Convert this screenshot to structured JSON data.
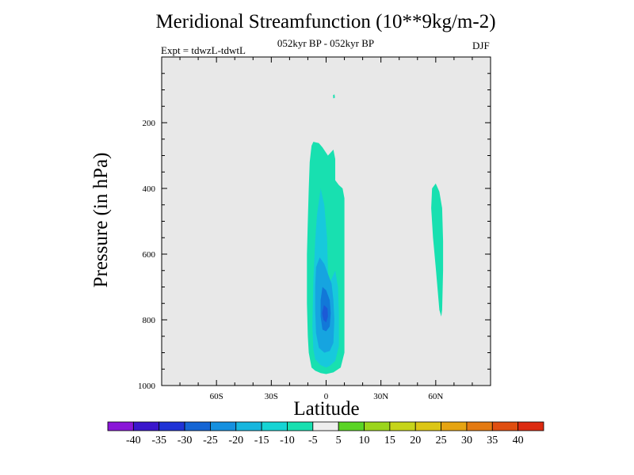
{
  "chart_data": {
    "type": "contour",
    "title": "Meridional Streamfunction (10**9kg/m-2)",
    "subtitle": "052kyr BP - 052kyr BP",
    "left_label": "Expt = tdwzL-tdwtL",
    "right_label": "DJF",
    "xlabel": "Latitude",
    "ylabel": "Pressure (in hPa)",
    "xlim": [
      -90,
      90
    ],
    "ylim": [
      1000,
      0
    ],
    "x_ticks": [
      {
        "value": -60,
        "label": "60S"
      },
      {
        "value": -30,
        "label": "30S"
      },
      {
        "value": 0,
        "label": "0"
      },
      {
        "value": 30,
        "label": "30N"
      },
      {
        "value": 60,
        "label": "60N"
      }
    ],
    "y_ticks": [
      {
        "value": 200,
        "label": "200"
      },
      {
        "value": 400,
        "label": "400"
      },
      {
        "value": 600,
        "label": "600"
      },
      {
        "value": 800,
        "label": "800"
      },
      {
        "value": 1000,
        "label": "1000"
      }
    ],
    "colorbar": {
      "levels": [
        -40,
        -35,
        -30,
        -25,
        -20,
        -15,
        -10,
        -5,
        5,
        10,
        15,
        20,
        25,
        30,
        35,
        40
      ],
      "colors": [
        "#8a16d8",
        "#3a16cc",
        "#2033d6",
        "#1565d4",
        "#1590df",
        "#17b6de",
        "#16d4d4",
        "#18e0b0",
        "#eeeeee",
        "#5ad425",
        "#9bd51b",
        "#c6d41a",
        "#dcc615",
        "#e6a412",
        "#e47a12",
        "#e04e10",
        "#dc2a10"
      ]
    },
    "regions": [
      {
        "name": "southern-cell-outer",
        "value_class": "-10 to -5",
        "color": "#18e0b0",
        "polygon": [
          [
            -7,
            258
          ],
          [
            -4,
            262
          ],
          [
            -2,
            275
          ],
          [
            1,
            300
          ],
          [
            3,
            288
          ],
          [
            4,
            282
          ],
          [
            5,
            310
          ],
          [
            5,
            375
          ],
          [
            7,
            390
          ],
          [
            9,
            400
          ],
          [
            10,
            430
          ],
          [
            10,
            530
          ],
          [
            10,
            900
          ],
          [
            8,
            945
          ],
          [
            4,
            960
          ],
          [
            0,
            965
          ],
          [
            -3,
            962
          ],
          [
            -6,
            955
          ],
          [
            -8,
            945
          ],
          [
            -9.5,
            900
          ],
          [
            -10,
            850
          ],
          [
            -10.5,
            750
          ],
          [
            -10.5,
            600
          ],
          [
            -10,
            500
          ],
          [
            -9.5,
            400
          ],
          [
            -9,
            320
          ],
          [
            -8,
            270
          ]
        ]
      },
      {
        "name": "southern-cell-mid",
        "value_class": "-15 to -10",
        "color": "#17c9dc",
        "polygon": [
          [
            -3,
            400
          ],
          [
            -1,
            450
          ],
          [
            0.5,
            550
          ],
          [
            1,
            650
          ],
          [
            1,
            700
          ],
          [
            5,
            650
          ],
          [
            6.5,
            700
          ],
          [
            7,
            780
          ],
          [
            7,
            880
          ],
          [
            5,
            925
          ],
          [
            2,
            940
          ],
          [
            0,
            945
          ],
          [
            -3,
            938
          ],
          [
            -6,
            920
          ],
          [
            -7,
            890
          ],
          [
            -7.5,
            820
          ],
          [
            -7,
            680
          ],
          [
            -6,
            560
          ],
          [
            -5,
            480
          ]
        ]
      },
      {
        "name": "southern-cell-inner",
        "value_class": "-20 to -15",
        "color": "#16a4e0",
        "polygon": [
          [
            -3.5,
            610
          ],
          [
            -1,
            630
          ],
          [
            1,
            660
          ],
          [
            3,
            690
          ],
          [
            4,
            740
          ],
          [
            4.5,
            800
          ],
          [
            4,
            870
          ],
          [
            2,
            895
          ],
          [
            -1,
            900
          ],
          [
            -4,
            885
          ],
          [
            -5.5,
            840
          ],
          [
            -6,
            770
          ],
          [
            -6,
            700
          ],
          [
            -5.5,
            640
          ]
        ]
      },
      {
        "name": "southern-cell-core",
        "value_class": "-25 to -20",
        "color": "#1278d8",
        "polygon": [
          [
            -2,
            700
          ],
          [
            0,
            710
          ],
          [
            2,
            740
          ],
          [
            2.5,
            780
          ],
          [
            2,
            820
          ],
          [
            0,
            835
          ],
          [
            -2,
            830
          ],
          [
            -3,
            790
          ],
          [
            -3,
            740
          ]
        ]
      },
      {
        "name": "southern-cell-peak",
        "value_class": "-30 to -25",
        "color": "#1c5ad6",
        "polygon": [
          [
            -1.2,
            755
          ],
          [
            0.8,
            765
          ],
          [
            1,
            790
          ],
          [
            0,
            808
          ],
          [
            -1.5,
            800
          ],
          [
            -2.2,
            780
          ]
        ]
      },
      {
        "name": "northern-cell",
        "value_class": "-10 to -5",
        "color": "#18e0b0",
        "polygon": [
          [
            58,
            400
          ],
          [
            60,
            385
          ],
          [
            62,
            410
          ],
          [
            63.5,
            460
          ],
          [
            64,
            560
          ],
          [
            64,
            650
          ],
          [
            63.5,
            770
          ],
          [
            63,
            790
          ],
          [
            62,
            770
          ],
          [
            60,
            640
          ],
          [
            58.5,
            550
          ],
          [
            57.5,
            460
          ]
        ]
      },
      {
        "name": "upper-speck",
        "value_class": "-10 to -5",
        "color": "#18e0b0",
        "polygon": [
          [
            3.8,
            116
          ],
          [
            4.6,
            114
          ],
          [
            4.8,
            124
          ],
          [
            3.9,
            126
          ]
        ]
      }
    ]
  }
}
